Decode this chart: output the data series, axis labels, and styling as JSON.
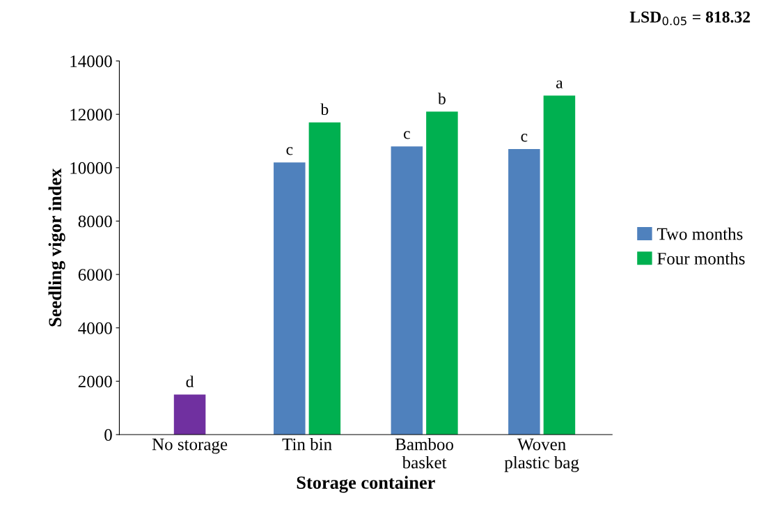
{
  "chart_data": {
    "type": "bar",
    "xlabel": "Storage container",
    "ylabel": "Seedling vigor index",
    "annotations": [
      "LSD$_{0.05}$ = 818.32"
    ],
    "categories": [
      "No storage",
      "Tin bin",
      "Bamboo\nbasket",
      "Woven\nplastic bag"
    ],
    "series": [
      {
        "name": "Two months",
        "color": "#4f81bd",
        "colors": [
          "#7030a0",
          "#4f81bd",
          "#4f81bd",
          "#4f81bd"
        ],
        "values": [
          1500,
          10200,
          10800,
          10700
        ],
        "value_labels": [
          "d",
          "c",
          "c",
          "c"
        ]
      },
      {
        "name": "Four months",
        "color": "#00b050",
        "values": [
          null,
          11700,
          12100,
          12700
        ],
        "value_labels": [
          null,
          "b",
          "b",
          "a"
        ]
      }
    ],
    "ylim": [
      0,
      14000
    ],
    "yticks": [
      0,
      2000,
      4000,
      6000,
      8000,
      10000,
      12000,
      14000
    ],
    "grid": false,
    "legend": "right"
  }
}
